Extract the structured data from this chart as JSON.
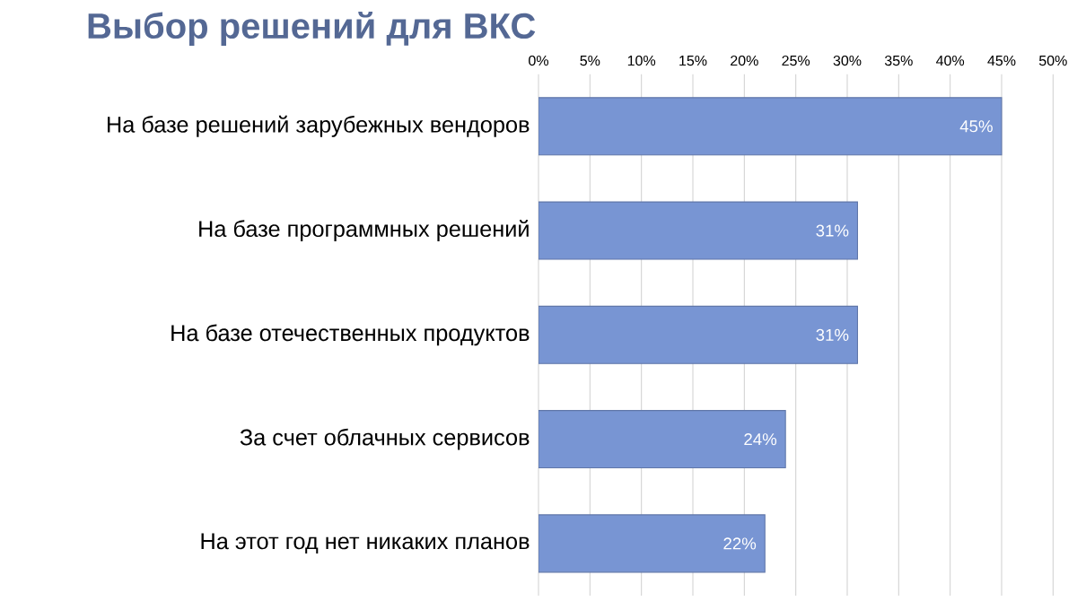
{
  "chart_data": {
    "type": "bar",
    "orientation": "horizontal",
    "title": "Выбор решений для ВКС",
    "categories": [
      "На базе решений зарубежных вендоров",
      "На базе программных решений",
      "На базе отечественных продуктов",
      "За счет облачных сервисов",
      "На этот год нет никаких планов"
    ],
    "values": [
      45,
      31,
      31,
      24,
      22
    ],
    "value_labels": [
      "45%",
      "31%",
      "31%",
      "24%",
      "22%"
    ],
    "color": "#7895d3",
    "xlim": [
      0,
      50
    ],
    "xticks": [
      {
        "value": 0,
        "label": "0%"
      },
      {
        "value": 5,
        "label": "5%"
      },
      {
        "value": 10,
        "label": "10%"
      },
      {
        "value": 15,
        "label": "15%"
      },
      {
        "value": 20,
        "label": "20%"
      },
      {
        "value": 25,
        "label": "25%"
      },
      {
        "value": 30,
        "label": "30%"
      },
      {
        "value": 35,
        "label": "35%"
      },
      {
        "value": 40,
        "label": "40%"
      },
      {
        "value": 45,
        "label": "45%"
      },
      {
        "value": 50,
        "label": "50%"
      }
    ],
    "grid": "x"
  }
}
